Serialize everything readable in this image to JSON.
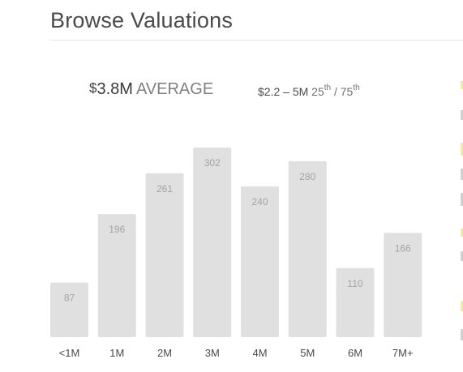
{
  "heading": "Browse Valuations",
  "summary": {
    "currency_symbol": "$",
    "average_value": "3.8M",
    "average_label": "AVERAGE",
    "range_text": "$2.2 – 5M",
    "percentile_low": "25",
    "percentile_high": "75",
    "percentile_suffix": "th",
    "range_separator": "/"
  },
  "colors": {
    "bar": "#e0e0e0",
    "value_label": "#a3a3a3",
    "axis_label": "#4a4a4a"
  },
  "chart_data": {
    "type": "bar",
    "title": "",
    "xlabel": "",
    "ylabel": "",
    "categories": [
      "<1M",
      "1M",
      "2M",
      "3M",
      "4M",
      "5M",
      "6M",
      "7M+"
    ],
    "values": [
      87,
      196,
      261,
      302,
      240,
      280,
      110,
      166
    ],
    "ylim": [
      0,
      302
    ],
    "data_labels": true,
    "grid": false,
    "legend": "none"
  }
}
